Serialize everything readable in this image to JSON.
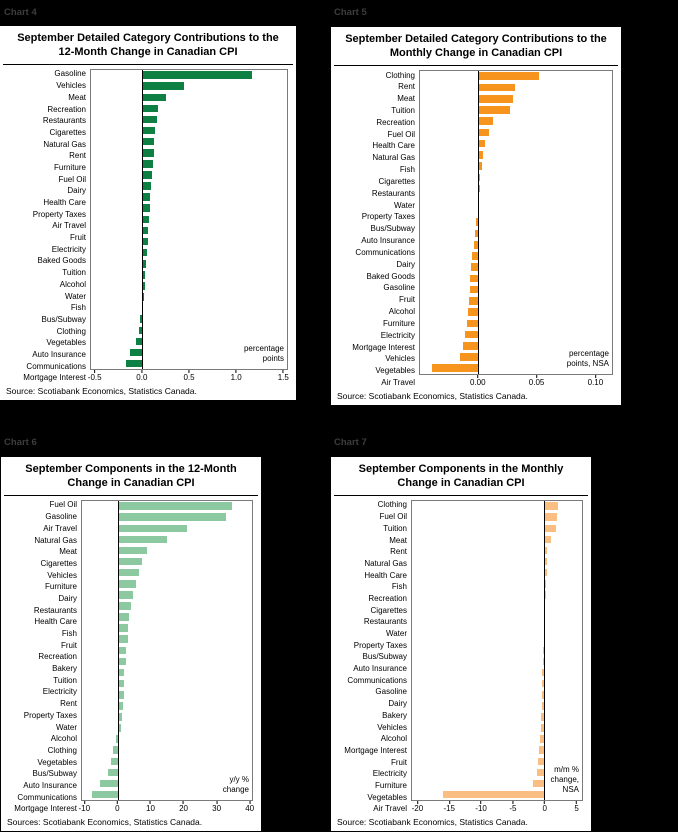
{
  "page": {
    "background": "#000000"
  },
  "chart_data": [
    {
      "type": "bar",
      "orientation": "horizontal",
      "chart_label": "Chart 4",
      "title": "September Detailed Category Contributions to the 12-Month Change in Canadian CPI",
      "note": "percentage\npoints",
      "source": "Source: Scotiabank Economics, Statistics Canada.",
      "color": "#0E8044",
      "xlim": [
        -0.55,
        1.55
      ],
      "ticks": [
        {
          "v": -0.5,
          "label": "-0.5"
        },
        {
          "v": 0.0,
          "label": "0.0"
        },
        {
          "v": 0.5,
          "label": "0.5"
        },
        {
          "v": 1.0,
          "label": "1.0"
        },
        {
          "v": 1.5,
          "label": "1.5"
        }
      ],
      "categories": [
        "Gasoline",
        "Vehicles",
        "Meat",
        "Recreation",
        "Restaurants",
        "Cigarettes",
        "Natural Gas",
        "Rent",
        "Furniture",
        "Fuel Oil",
        "Dairy",
        "Health Care",
        "Property Taxes",
        "Air Travel",
        "Fruit",
        "Electricity",
        "Baked Goods",
        "Tuition",
        "Alcohol",
        "Water",
        "Fish",
        "Bus/Subway",
        "Clothing",
        "Vegetables",
        "Auto Insurance",
        "Communications",
        "Mortgage Interest"
      ],
      "values": [
        1.17,
        0.45,
        0.25,
        0.17,
        0.16,
        0.14,
        0.13,
        0.12,
        0.11,
        0.1,
        0.09,
        0.08,
        0.08,
        0.07,
        0.06,
        0.06,
        0.05,
        0.04,
        0.03,
        0.03,
        0.02,
        0.01,
        -0.02,
        -0.04,
        -0.07,
        -0.13,
        -0.17
      ]
    },
    {
      "type": "bar",
      "orientation": "horizontal",
      "chart_label": "Chart 5",
      "title": "September Detailed Category Contributions to the Monthly Change in Canadian CPI",
      "note": "percentage\npoints, NSA",
      "source": "Source: Scotiabank Economics, Statistics Canada.",
      "color": "#F7941D",
      "xlim": [
        -0.05,
        0.115
      ],
      "ticks": [
        {
          "v": 0.0,
          "label": "0.00"
        },
        {
          "v": 0.05,
          "label": "0.05"
        },
        {
          "v": 0.1,
          "label": "0.10"
        }
      ],
      "categories": [
        "Clothing",
        "Rent",
        "Meat",
        "Tuition",
        "Recreation",
        "Fuel Oil",
        "Health Care",
        "Natural Gas",
        "Fish",
        "Cigarettes",
        "Restaurants",
        "Water",
        "Property Taxes",
        "Bus/Subway",
        "Auto Insurance",
        "Communications",
        "Dairy",
        "Baked Goods",
        "Gasoline",
        "Fruit",
        "Alcohol",
        "Furniture",
        "Electricity",
        "Mortgage Interest",
        "Vehicles",
        "Vegetables",
        "Air Travel"
      ],
      "values": [
        0.052,
        0.032,
        0.03,
        0.027,
        0.013,
        0.009,
        0.006,
        0.004,
        0.003,
        0.002,
        0.002,
        0.001,
        0.0005,
        -0.002,
        -0.003,
        -0.004,
        -0.005,
        -0.006,
        -0.007,
        -0.007,
        -0.008,
        -0.009,
        -0.01,
        -0.011,
        -0.013,
        -0.016,
        -0.04
      ]
    },
    {
      "type": "bar",
      "orientation": "horizontal",
      "chart_label": "Chart 6",
      "title": "September Components in the 12-Month Change in Canadian CPI",
      "note": "y/y %\nchange",
      "source": "Sources: Scotiabank Economics, Statistics Canada.",
      "color": "#8CC8A0",
      "xlim": [
        -11,
        41
      ],
      "ticks": [
        {
          "v": -10,
          "label": "-10"
        },
        {
          "v": 0,
          "label": "0"
        },
        {
          "v": 10,
          "label": "10"
        },
        {
          "v": 20,
          "label": "20"
        },
        {
          "v": 30,
          "label": "30"
        },
        {
          "v": 40,
          "label": "40"
        }
      ],
      "categories": [
        "Fuel Oil",
        "Gasoline",
        "Air Travel",
        "Natural Gas",
        "Meat",
        "Cigarettes",
        "Vehicles",
        "Furniture",
        "Dairy",
        "Restaurants",
        "Health Care",
        "Fish",
        "Fruit",
        "Recreation",
        "Bakery",
        "Tuition",
        "Electricity",
        "Rent",
        "Property Taxes",
        "Water",
        "Alcohol",
        "Clothing",
        "Vegetables",
        "Bus/Subway",
        "Auto Insurance",
        "Communications",
        "Mortgage Interest"
      ],
      "values": [
        35,
        33,
        21,
        15,
        9,
        7.5,
        6.5,
        5.5,
        4.5,
        4,
        3.5,
        3,
        3,
        2.5,
        2.5,
        2,
        2,
        1.8,
        1.5,
        1.2,
        1,
        -0.5,
        -1.5,
        -2,
        -3,
        -5.5,
        -8
      ]
    },
    {
      "type": "bar",
      "orientation": "horizontal",
      "chart_label": "Chart 7",
      "title": "September Components in the Monthly Change in Canadian CPI",
      "note": "m/m %\nchange,\nNSA",
      "source": "Source: Scotiabank Economics, Statistics Canada.",
      "color": "#FBBE82",
      "xlim": [
        -21,
        6
      ],
      "ticks": [
        {
          "v": -20,
          "label": "-20"
        },
        {
          "v": -15,
          "label": "-15"
        },
        {
          "v": -10,
          "label": "-10"
        },
        {
          "v": -5,
          "label": "-5"
        },
        {
          "v": 0,
          "label": "0"
        },
        {
          "v": 5,
          "label": "5"
        }
      ],
      "categories": [
        "Clothing",
        "Fuel Oil",
        "Tuition",
        "Meat",
        "Rent",
        "Natural Gas",
        "Health Care",
        "Fish",
        "Recreation",
        "Cigarettes",
        "Restaurants",
        "Water",
        "Property Taxes",
        "Bus/Subway",
        "Auto Insurance",
        "Communications",
        "Gasoline",
        "Dairy",
        "Bakery",
        "Vehicles",
        "Alcohol",
        "Mortgage Interest",
        "Fruit",
        "Electricity",
        "Furniture",
        "Vegetables",
        "Air Travel"
      ],
      "values": [
        2.2,
        2.0,
        1.8,
        1.0,
        0.5,
        0.4,
        0.4,
        0.3,
        0.3,
        0.2,
        0.2,
        0.1,
        0.05,
        -0.2,
        -0.2,
        -0.3,
        -0.3,
        -0.4,
        -0.4,
        -0.5,
        -0.5,
        -0.6,
        -0.8,
        -1.0,
        -1.2,
        -1.8,
        -16
      ]
    }
  ]
}
